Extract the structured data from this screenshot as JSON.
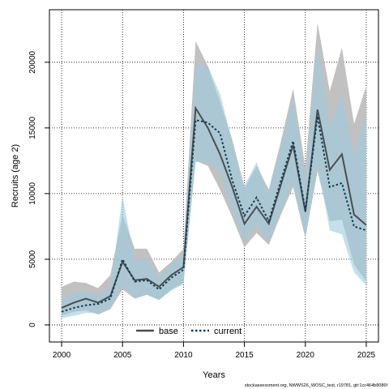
{
  "chart_data": {
    "type": "line",
    "xlabel": "Years",
    "ylabel": "Recruits (age 2)",
    "xlim": [
      1999,
      2026
    ],
    "ylim": [
      -1300,
      24000
    ],
    "x_ticks": [
      2000,
      2005,
      2010,
      2015,
      2020,
      2025
    ],
    "y_ticks": [
      0,
      5000,
      10000,
      15000,
      20000
    ],
    "grid": true,
    "legend_position": "bottom-center",
    "x": [
      2000,
      2001,
      2002,
      2003,
      2004,
      2005,
      2006,
      2007,
      2008,
      2009,
      2010,
      2011,
      2012,
      2013,
      2014,
      2015,
      2016,
      2017,
      2018,
      2019,
      2020,
      2021,
      2022,
      2023,
      2024,
      2025
    ],
    "series": [
      {
        "name": "base",
        "style": "solid",
        "line_color": "#4d4d4d",
        "band_color": "#bebebe",
        "values": [
          1300,
          1700,
          2000,
          1700,
          2200,
          4800,
          3400,
          3500,
          2900,
          3800,
          4400,
          16500,
          15000,
          13000,
          10500,
          7700,
          9000,
          7700,
          10700,
          13700,
          8600,
          16400,
          11800,
          13000,
          8400,
          7600
        ],
        "lower": [
          700,
          1000,
          1100,
          800,
          1200,
          2700,
          2000,
          2300,
          1900,
          2700,
          3200,
          12500,
          12100,
          10300,
          8200,
          5900,
          7000,
          6100,
          8400,
          10500,
          6600,
          11700,
          7900,
          8000,
          4600,
          3300
        ],
        "upper": [
          2900,
          3300,
          3200,
          2800,
          3800,
          8400,
          5800,
          5800,
          4000,
          4800,
          5800,
          21600,
          19700,
          17000,
          14100,
          10400,
          12100,
          10300,
          14000,
          18000,
          12000,
          23000,
          17800,
          21100,
          15300,
          18200
        ]
      },
      {
        "name": "current",
        "style": "dotted",
        "line_color": "#0e3d56",
        "band_color": "#9ccbe0",
        "values": [
          1000,
          1300,
          1500,
          1600,
          2000,
          5000,
          3300,
          3400,
          2700,
          3600,
          4200,
          15600,
          15400,
          14600,
          11000,
          8300,
          9700,
          7900,
          11000,
          14000,
          8700,
          15900,
          10500,
          10800,
          7500,
          7200
        ],
        "lower": [
          500,
          700,
          900,
          900,
          1300,
          3000,
          2100,
          2300,
          1900,
          2600,
          3100,
          12400,
          12400,
          11800,
          8700,
          6400,
          7700,
          6300,
          8700,
          10800,
          6700,
          12200,
          7200,
          6900,
          4000,
          3000
        ],
        "upper": [
          2000,
          2400,
          2600,
          2300,
          2900,
          9800,
          4900,
          5000,
          3600,
          4600,
          5500,
          19800,
          19700,
          17600,
          14000,
          10600,
          12400,
          10000,
          13600,
          17300,
          11000,
          21500,
          15100,
          17500,
          13000,
          16000
        ]
      }
    ]
  },
  "footer": "stockassessment.org, NWWS26_WOSC_test, r19781, git:1cc464b8086f"
}
